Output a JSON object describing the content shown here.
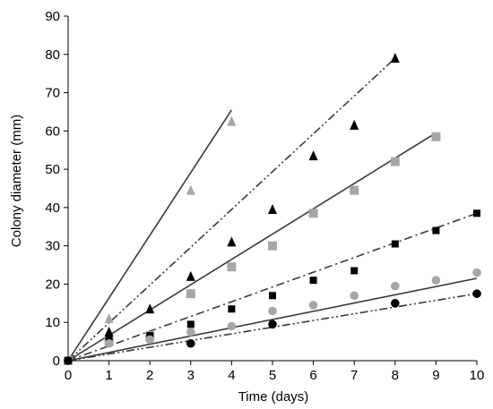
{
  "chart_data": {
    "type": "scatter",
    "title": "",
    "xlabel": "Time (days)",
    "ylabel": "Colony diameter  (mm)",
    "xlim": [
      0,
      10
    ],
    "ylim": [
      0,
      90
    ],
    "xticks": [
      0,
      1,
      2,
      3,
      4,
      5,
      6,
      7,
      8,
      9,
      10
    ],
    "yticks": [
      0,
      10,
      20,
      30,
      40,
      50,
      60,
      70,
      80,
      90
    ],
    "grid": false,
    "legend": "none",
    "series": [
      {
        "marker": "triangle",
        "color": "#a6a6a6",
        "points": [
          [
            0,
            0
          ],
          [
            1,
            11
          ],
          [
            3,
            44.5
          ],
          [
            4,
            62.5
          ]
        ],
        "fit": {
          "style": "solid",
          "color": "#3a3a3a",
          "x": [
            0,
            4
          ],
          "y": [
            0,
            65.5
          ]
        }
      },
      {
        "marker": "triangle",
        "color": "#000000",
        "points": [
          [
            0,
            0
          ],
          [
            1,
            7.5
          ],
          [
            2,
            13.5
          ],
          [
            3,
            22
          ],
          [
            4,
            31
          ],
          [
            5,
            39.5
          ],
          [
            6,
            53.5
          ],
          [
            7,
            61.5
          ],
          [
            8,
            79
          ]
        ],
        "fit": {
          "style": "dash-dot-dot",
          "color": "#3a3a3a",
          "x": [
            0,
            8
          ],
          "y": [
            0,
            79
          ]
        }
      },
      {
        "marker": "square",
        "color": "#a6a6a6",
        "points": [
          [
            0,
            0
          ],
          [
            1,
            5
          ],
          [
            2,
            6.5
          ],
          [
            3,
            17.5
          ],
          [
            4,
            24.5
          ],
          [
            5,
            30
          ],
          [
            6,
            38.5
          ],
          [
            7,
            44.5
          ],
          [
            8,
            52
          ],
          [
            9,
            58.5
          ]
        ],
        "fit": {
          "style": "solid",
          "color": "#3a3a3a",
          "x": [
            0,
            9
          ],
          "y": [
            0,
            59.5
          ]
        }
      },
      {
        "marker": "square",
        "color": "#000000",
        "points": [
          [
            0,
            0
          ],
          [
            1,
            5.5
          ],
          [
            2,
            6.5
          ],
          [
            3,
            9.5
          ],
          [
            4,
            13.5
          ],
          [
            5,
            17
          ],
          [
            6,
            21
          ],
          [
            7,
            23.5
          ],
          [
            8,
            30.5
          ],
          [
            9,
            34
          ],
          [
            10,
            38.5
          ]
        ],
        "fit": {
          "style": "dash-dot",
          "color": "#3a3a3a",
          "x": [
            0,
            10
          ],
          "y": [
            0,
            38.5
          ]
        }
      },
      {
        "marker": "circle",
        "color": "#a6a6a6",
        "points": [
          [
            0,
            0
          ],
          [
            1,
            4.5
          ],
          [
            2,
            5.5
          ],
          [
            3,
            7.5
          ],
          [
            4,
            9
          ],
          [
            5,
            13
          ],
          [
            6,
            14.5
          ],
          [
            7,
            17
          ],
          [
            8,
            19.5
          ],
          [
            9,
            21
          ],
          [
            10,
            23
          ]
        ],
        "fit": {
          "style": "solid",
          "color": "#3a3a3a",
          "x": [
            0,
            10
          ],
          "y": [
            0,
            21.5
          ]
        }
      },
      {
        "marker": "circle",
        "color": "#000000",
        "points": [
          [
            0,
            0
          ],
          [
            3,
            4.5
          ],
          [
            5,
            9.5
          ],
          [
            8,
            15
          ],
          [
            10,
            17.5
          ]
        ],
        "fit": {
          "style": "dash-dot-dot",
          "color": "#3a3a3a",
          "x": [
            0,
            10
          ],
          "y": [
            0,
            17.5
          ]
        }
      }
    ]
  }
}
